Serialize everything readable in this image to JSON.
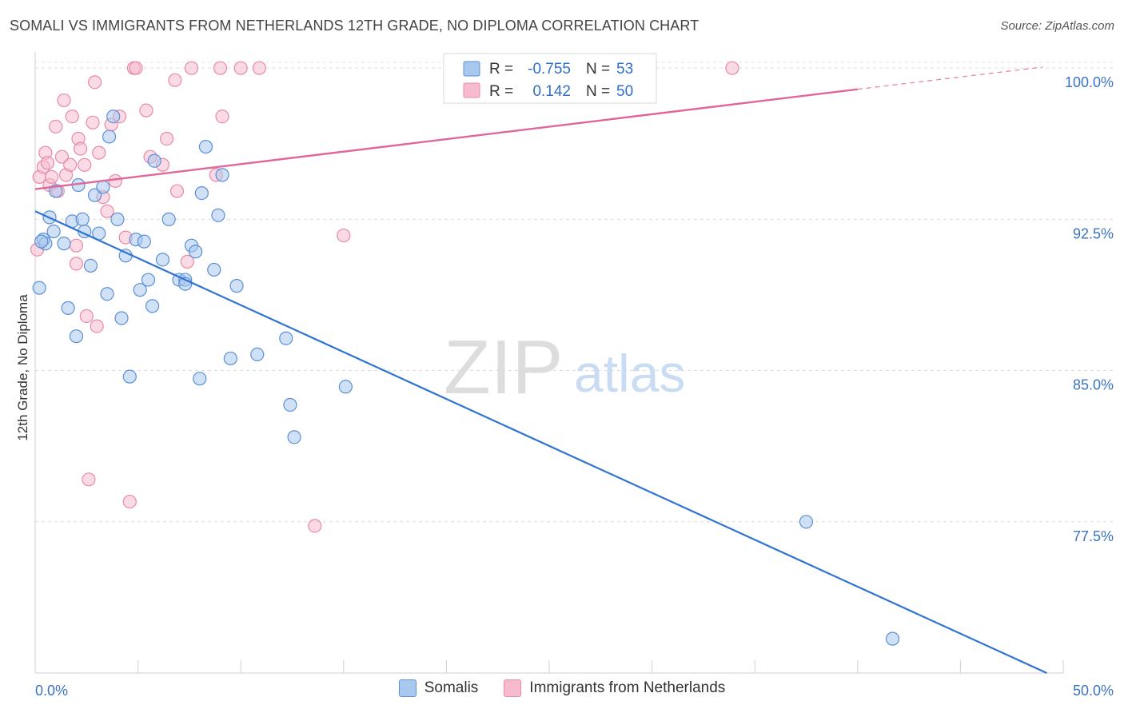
{
  "header": {
    "title": "SOMALI VS IMMIGRANTS FROM NETHERLANDS 12TH GRADE, NO DIPLOMA CORRELATION CHART",
    "source": "Source: ZipAtlas.com"
  },
  "watermark": {
    "zip": "ZIP",
    "atlas": "atlas"
  },
  "legend_box": {
    "rows": [
      {
        "r_label": "R =",
        "r_value": "-0.755",
        "n_label": "N =",
        "n_value": "53"
      },
      {
        "r_label": "R =",
        "r_value": "0.142",
        "n_label": "N =",
        "n_value": "50"
      }
    ]
  },
  "chart_data": {
    "type": "scatter",
    "title": "SOMALI VS IMMIGRANTS FROM NETHERLANDS 12TH GRADE, NO DIPLOMA CORRELATION CHART",
    "xlabel": "",
    "ylabel": "12th Grade, No Diploma",
    "xlim": [
      0,
      50
    ],
    "ylim": [
      70,
      100.8
    ],
    "x_tick_labels": [
      "0.0%",
      "50.0%"
    ],
    "y_ticks": [
      77.5,
      85.0,
      92.5,
      100.0
    ],
    "y_tick_labels": [
      "77.5%",
      "85.0%",
      "92.5%",
      "100.0%"
    ],
    "grid": true,
    "legend_placement": "bottom",
    "colors": {
      "somali_fill": "#a9c8ee",
      "somali_stroke": "#5b8fd6",
      "somali_line": "#2f74d0",
      "neth_fill": "#f6bccd",
      "neth_stroke": "#e88aa8",
      "neth_line": "#e0679a",
      "tick_label": "#3b73c4"
    },
    "series": [
      {
        "name": "Somalis",
        "r": -0.755,
        "n": 53,
        "trend": {
          "x0": 0,
          "y0": 92.9,
          "x1": 49.2,
          "y1": 70.0
        },
        "points": [
          [
            0.2,
            89.1
          ],
          [
            0.4,
            91.5
          ],
          [
            0.5,
            91.3
          ],
          [
            0.7,
            92.6
          ],
          [
            0.9,
            91.9
          ],
          [
            1.0,
            93.9
          ],
          [
            1.4,
            91.3
          ],
          [
            1.6,
            88.1
          ],
          [
            1.8,
            92.4
          ],
          [
            2.0,
            86.7
          ],
          [
            2.1,
            94.2
          ],
          [
            2.3,
            92.5
          ],
          [
            2.4,
            91.9
          ],
          [
            2.7,
            90.2
          ],
          [
            2.9,
            93.7
          ],
          [
            3.1,
            91.8
          ],
          [
            3.3,
            94.1
          ],
          [
            3.5,
            88.8
          ],
          [
            3.6,
            96.6
          ],
          [
            3.8,
            97.6
          ],
          [
            4.0,
            92.5
          ],
          [
            4.2,
            87.6
          ],
          [
            4.4,
            90.7
          ],
          [
            4.6,
            84.7
          ],
          [
            4.9,
            91.5
          ],
          [
            5.1,
            89.0
          ],
          [
            5.3,
            91.4
          ],
          [
            5.5,
            89.5
          ],
          [
            5.7,
            88.2
          ],
          [
            5.8,
            95.4
          ],
          [
            6.2,
            90.5
          ],
          [
            6.5,
            92.5
          ],
          [
            7.0,
            89.5
          ],
          [
            7.3,
            89.5
          ],
          [
            7.3,
            89.3
          ],
          [
            7.6,
            91.2
          ],
          [
            7.8,
            90.9
          ],
          [
            8.0,
            84.6
          ],
          [
            8.1,
            93.8
          ],
          [
            8.3,
            96.1
          ],
          [
            8.7,
            90.0
          ],
          [
            8.9,
            92.7
          ],
          [
            9.1,
            94.7
          ],
          [
            9.5,
            85.6
          ],
          [
            9.8,
            89.2
          ],
          [
            10.8,
            85.8
          ],
          [
            12.2,
            86.6
          ],
          [
            12.4,
            83.3
          ],
          [
            12.6,
            81.7
          ],
          [
            15.1,
            84.2
          ],
          [
            37.5,
            77.5
          ],
          [
            41.7,
            71.7
          ],
          [
            0.3,
            91.4
          ]
        ]
      },
      {
        "name": "Immigrants from Netherlands",
        "r": 0.142,
        "n": 50,
        "trend": {
          "x0": 0,
          "y0": 94.0,
          "x1": 40.0,
          "y1": 98.95,
          "dash_to_x": 49.0,
          "dash_to_y": 100.05
        },
        "points": [
          [
            0.1,
            91.0
          ],
          [
            0.2,
            94.6
          ],
          [
            0.4,
            95.1
          ],
          [
            0.5,
            95.8
          ],
          [
            0.6,
            95.3
          ],
          [
            0.7,
            94.2
          ],
          [
            0.8,
            94.6
          ],
          [
            1.0,
            97.1
          ],
          [
            1.1,
            93.9
          ],
          [
            1.3,
            95.6
          ],
          [
            1.4,
            98.4
          ],
          [
            1.5,
            94.7
          ],
          [
            1.7,
            95.2
          ],
          [
            1.8,
            97.6
          ],
          [
            2.0,
            91.2
          ],
          [
            2.0,
            90.3
          ],
          [
            2.1,
            96.5
          ],
          [
            2.2,
            96.0
          ],
          [
            2.4,
            95.2
          ],
          [
            2.5,
            87.7
          ],
          [
            2.6,
            79.6
          ],
          [
            2.8,
            97.3
          ],
          [
            2.9,
            99.3
          ],
          [
            3.0,
            87.2
          ],
          [
            3.1,
            95.8
          ],
          [
            3.3,
            93.6
          ],
          [
            3.5,
            92.9
          ],
          [
            3.7,
            97.2
          ],
          [
            3.9,
            94.4
          ],
          [
            4.1,
            97.6
          ],
          [
            4.4,
            91.6
          ],
          [
            4.6,
            78.5
          ],
          [
            4.8,
            100.0
          ],
          [
            4.9,
            100.0
          ],
          [
            5.4,
            97.9
          ],
          [
            5.6,
            95.6
          ],
          [
            6.2,
            95.2
          ],
          [
            6.4,
            96.5
          ],
          [
            6.8,
            99.4
          ],
          [
            6.9,
            93.9
          ],
          [
            7.4,
            90.4
          ],
          [
            7.6,
            100.0
          ],
          [
            8.8,
            94.7
          ],
          [
            9.0,
            100.0
          ],
          [
            9.1,
            97.6
          ],
          [
            10.0,
            100.0
          ],
          [
            10.9,
            100.0
          ],
          [
            13.6,
            77.3
          ],
          [
            15.0,
            91.7
          ],
          [
            33.9,
            100.0
          ]
        ]
      }
    ]
  },
  "bottom_legend": {
    "items": [
      {
        "label": "Somalis"
      },
      {
        "label": "Immigrants from Netherlands"
      }
    ]
  }
}
